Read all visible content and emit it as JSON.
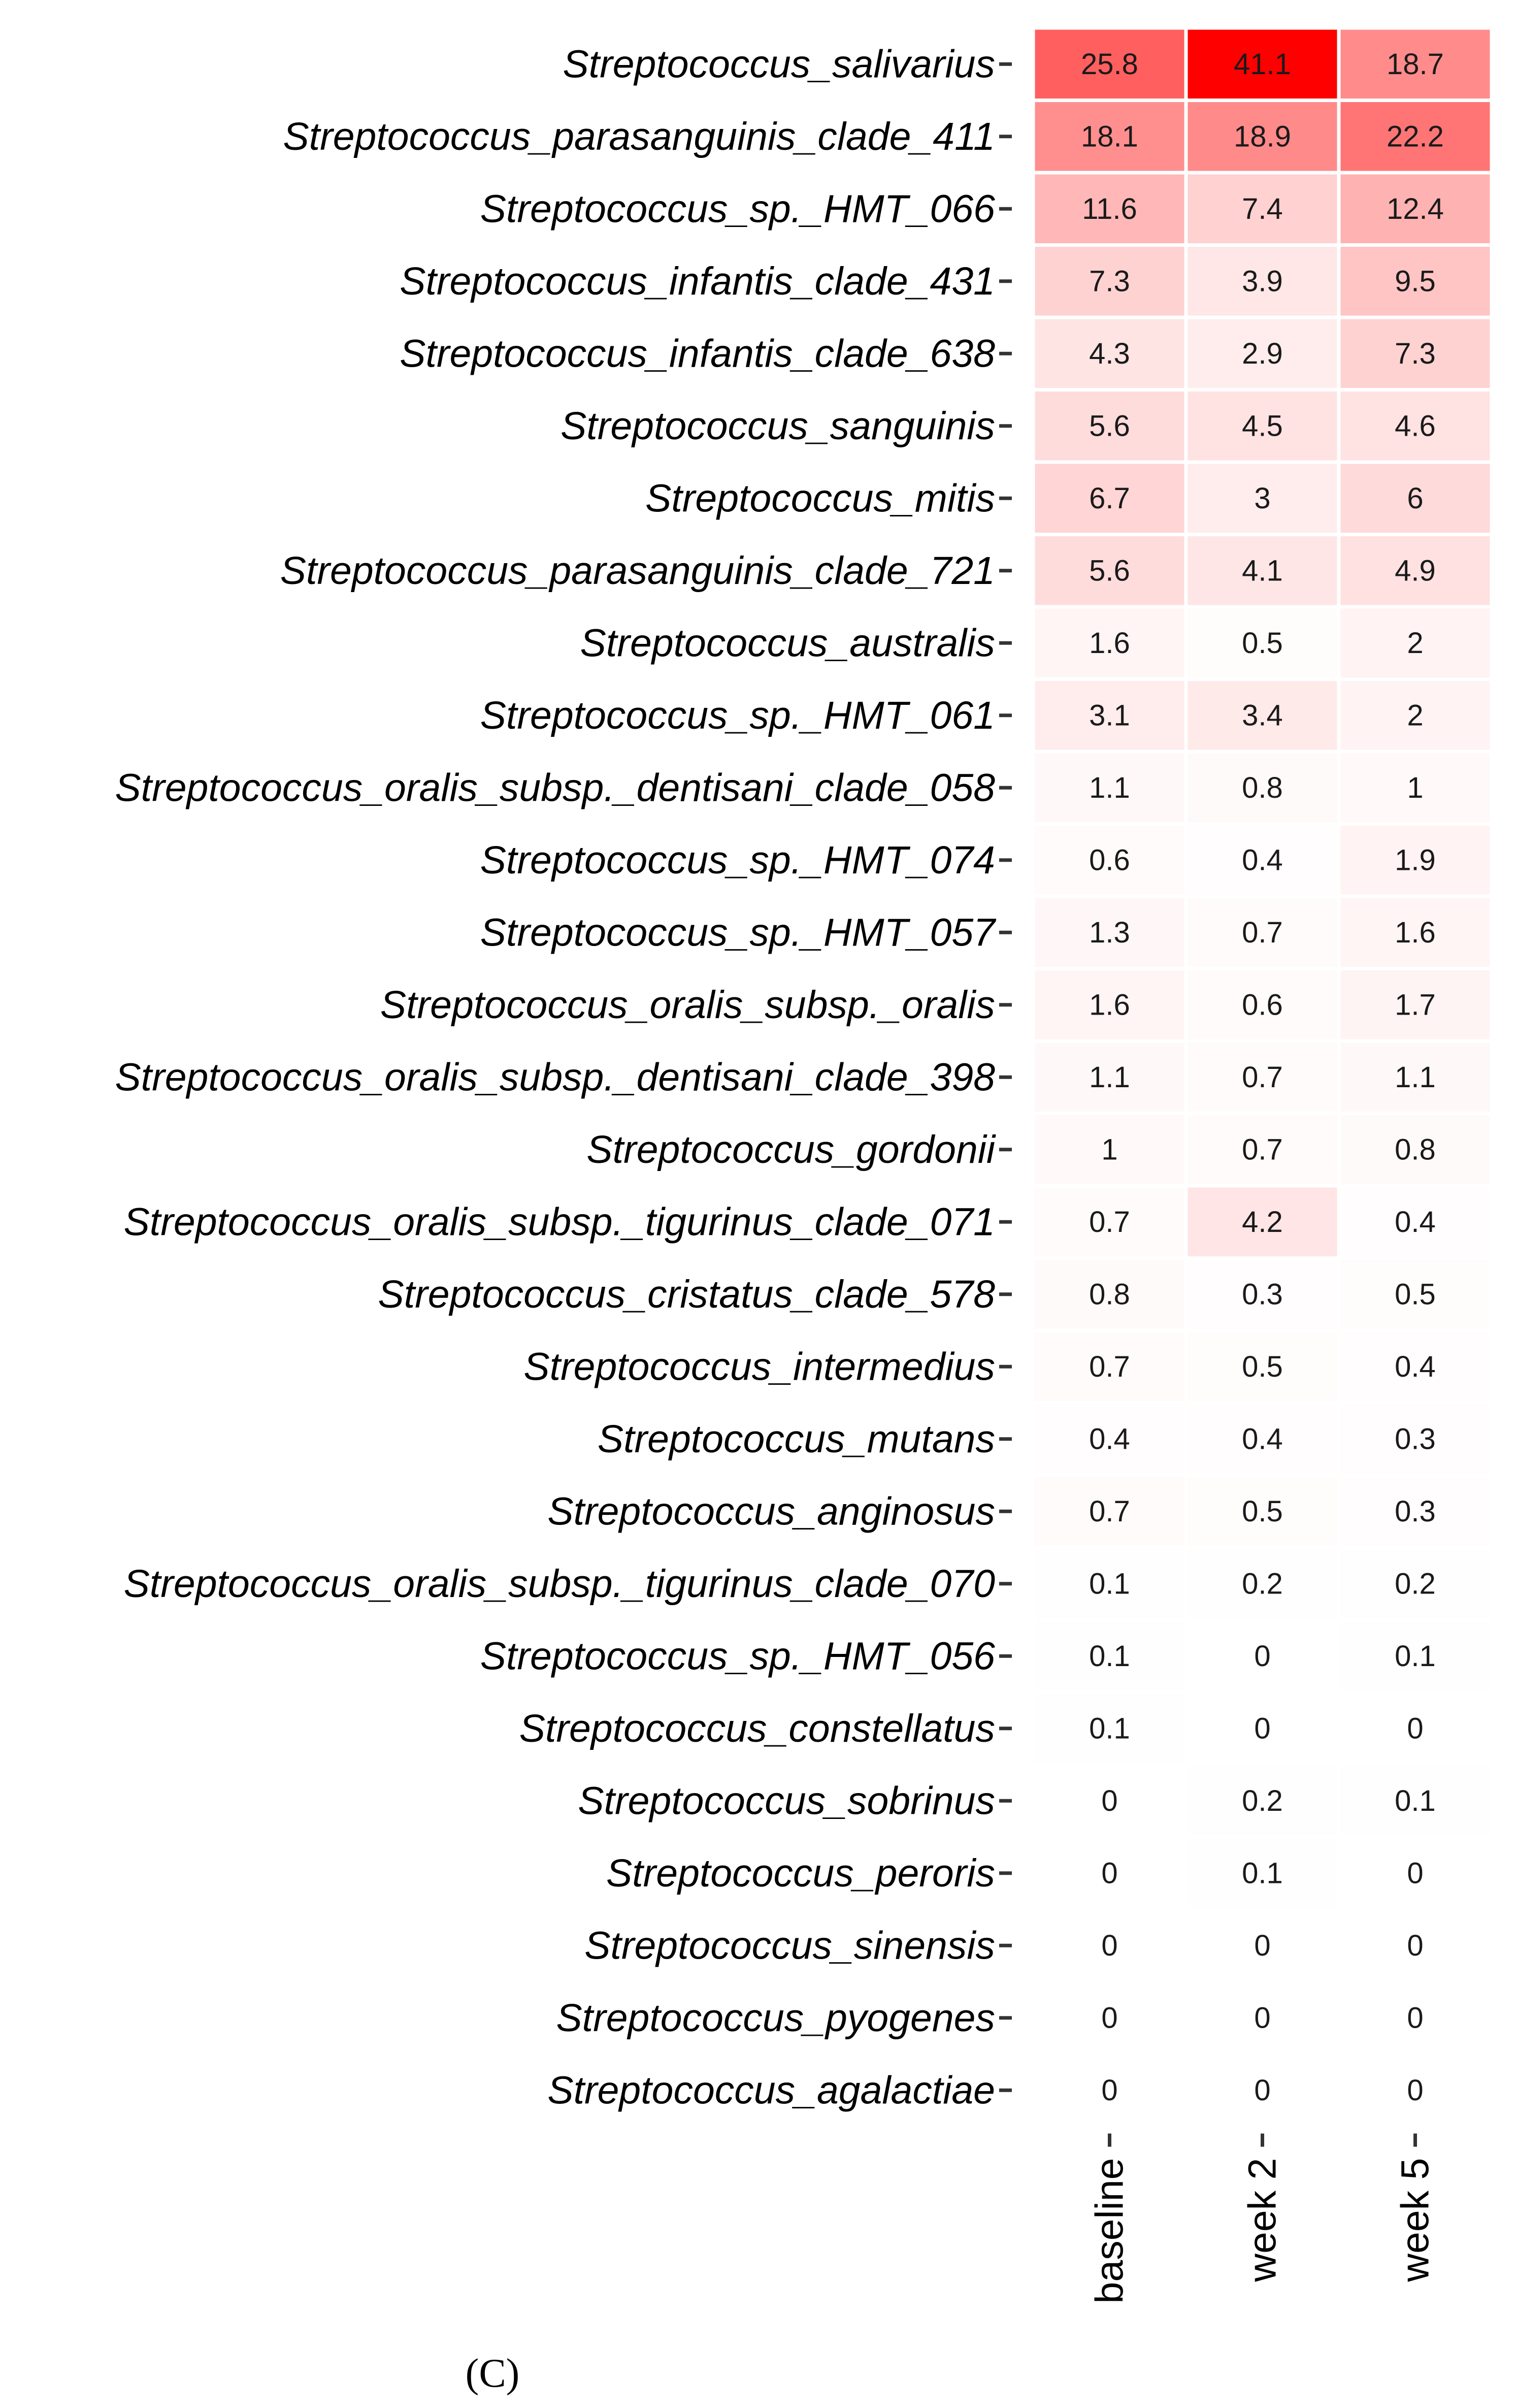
{
  "panel_label": "(C)",
  "chart_data": {
    "type": "heatmap",
    "title": "",
    "xlabel": "",
    "ylabel": "",
    "columns": [
      "baseline",
      "week 2",
      "week 5"
    ],
    "rows": [
      "Streptococcus_salivarius",
      "Streptococcus_parasanguinis_clade_411",
      "Streptococcus_sp._HMT_066",
      "Streptococcus_infantis_clade_431",
      "Streptococcus_infantis_clade_638",
      "Streptococcus_sanguinis",
      "Streptococcus_mitis",
      "Streptococcus_parasanguinis_clade_721",
      "Streptococcus_australis",
      "Streptococcus_sp._HMT_061",
      "Streptococcus_oralis_subsp._dentisani_clade_058",
      "Streptococcus_sp._HMT_074",
      "Streptococcus_sp._HMT_057",
      "Streptococcus_oralis_subsp._oralis",
      "Streptococcus_oralis_subsp._dentisani_clade_398",
      "Streptococcus_gordonii",
      "Streptococcus_oralis_subsp._tigurinus_clade_071",
      "Streptococcus_cristatus_clade_578",
      "Streptococcus_intermedius",
      "Streptococcus_mutans",
      "Streptococcus_anginosus",
      "Streptococcus_oralis_subsp._tigurinus_clade_070",
      "Streptococcus_sp._HMT_056",
      "Streptococcus_constellatus",
      "Streptococcus_sobrinus",
      "Streptococcus_peroris",
      "Streptococcus_sinensis",
      "Streptococcus_pyogenes",
      "Streptococcus_agalactiae"
    ],
    "values": [
      [
        "25.8",
        "41.1",
        "18.7"
      ],
      [
        "18.1",
        "18.9",
        "22.2"
      ],
      [
        "11.6",
        "7.4",
        "12.4"
      ],
      [
        "7.3",
        "3.9",
        "9.5"
      ],
      [
        "4.3",
        "2.9",
        "7.3"
      ],
      [
        "5.6",
        "4.5",
        "4.6"
      ],
      [
        "6.7",
        "3",
        "6"
      ],
      [
        "5.6",
        "4.1",
        "4.9"
      ],
      [
        "1.6",
        "0.5",
        "2"
      ],
      [
        "3.1",
        "3.4",
        "2"
      ],
      [
        "1.1",
        "0.8",
        "1"
      ],
      [
        "0.6",
        "0.4",
        "1.9"
      ],
      [
        "1.3",
        "0.7",
        "1.6"
      ],
      [
        "1.6",
        "0.6",
        "1.7"
      ],
      [
        "1.1",
        "0.7",
        "1.1"
      ],
      [
        "1",
        "0.7",
        "0.8"
      ],
      [
        "0.7",
        "4.2",
        "0.4"
      ],
      [
        "0.8",
        "0.3",
        "0.5"
      ],
      [
        "0.7",
        "0.5",
        "0.4"
      ],
      [
        "0.4",
        "0.4",
        "0.3"
      ],
      [
        "0.7",
        "0.5",
        "0.3"
      ],
      [
        "0.1",
        "0.2",
        "0.2"
      ],
      [
        "0.1",
        "0",
        "0.1"
      ],
      [
        "0.1",
        "0",
        "0"
      ],
      [
        "0",
        "0.2",
        "0.1"
      ],
      [
        "0",
        "0.1",
        "0"
      ],
      [
        "0",
        "0",
        "0"
      ],
      [
        "0",
        "0",
        "0"
      ],
      [
        "0",
        "0",
        "0"
      ]
    ],
    "color_low": "#ffffff",
    "color_high": "#ff0000",
    "legend": "none",
    "grid": false
  }
}
